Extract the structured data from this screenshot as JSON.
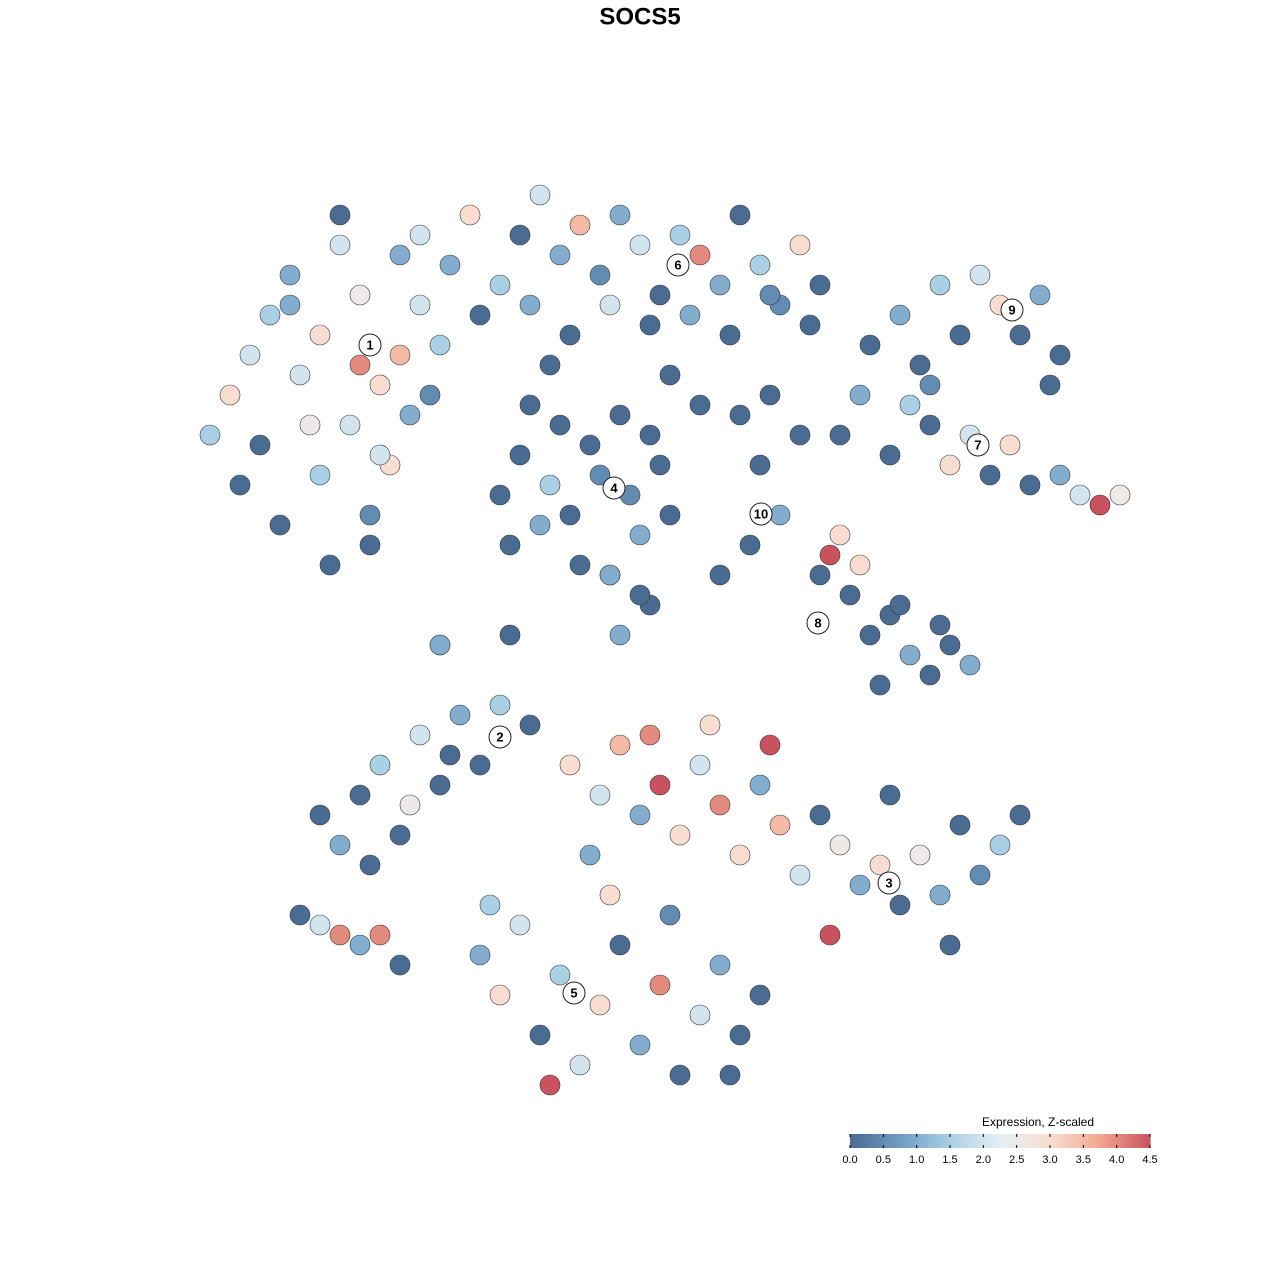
{
  "chart_data": {
    "type": "scatter",
    "title": "SOCS5",
    "xlim": [
      0,
      93
    ],
    "ylim": [
      0,
      91
    ],
    "x": [
      1,
      3,
      5,
      4,
      7,
      9,
      10,
      12,
      14,
      16,
      18,
      20,
      22,
      24,
      8,
      12,
      15,
      17,
      19,
      21,
      6,
      11,
      13,
      17,
      20,
      23,
      14,
      18,
      9,
      16,
      22,
      25,
      27,
      30,
      32,
      34,
      36,
      38,
      40,
      42,
      44,
      46,
      48,
      50,
      52,
      54,
      56,
      58,
      60,
      62,
      28,
      33,
      37,
      41,
      45,
      49,
      53,
      57,
      61,
      35,
      30,
      32,
      34,
      36,
      38,
      40,
      42,
      44,
      46,
      31,
      33,
      35,
      37,
      39,
      41,
      43,
      45,
      47,
      54,
      56,
      58,
      60,
      55,
      57,
      47,
      50,
      52,
      45,
      42,
      24,
      67,
      70,
      72,
      74,
      76,
      78,
      80,
      82,
      84,
      86,
      73,
      85,
      64,
      66,
      69,
      71,
      73,
      75,
      77,
      79,
      81,
      83,
      86,
      88,
      90,
      92,
      63,
      65,
      67,
      69,
      71,
      73,
      75,
      77,
      62,
      66,
      70,
      74,
      68,
      64,
      12,
      14,
      16,
      18,
      20,
      22,
      24,
      26,
      28,
      30,
      17,
      21,
      25,
      33,
      37,
      40,
      42,
      44,
      46,
      48,
      50,
      52,
      54,
      56,
      58,
      60,
      62,
      64,
      66,
      68,
      70,
      72,
      74,
      76,
      78,
      80,
      82,
      39,
      45,
      51,
      57,
      63,
      69,
      75,
      28,
      30,
      32,
      34,
      36,
      38,
      40,
      42,
      44,
      46,
      48,
      50,
      52,
      54,
      56,
      29,
      35,
      41,
      47,
      53,
      10,
      12,
      14,
      16,
      18,
      20,
      24,
      31,
      44,
      41
    ],
    "y": [
      66,
      70,
      74,
      61,
      78,
      82,
      72,
      76,
      85,
      80,
      71,
      84,
      79,
      75,
      57,
      62,
      67,
      58,
      63,
      68,
      65,
      67,
      53,
      55,
      74,
      70,
      88,
      64,
      79,
      73,
      86,
      83,
      88,
      81,
      86,
      90,
      84,
      87,
      82,
      88,
      85,
      80,
      86,
      84,
      81,
      88,
      83,
      79,
      85,
      81,
      78,
      79,
      76,
      79,
      77,
      78,
      76,
      80,
      77,
      73,
      60,
      64,
      57,
      67,
      53,
      62,
      68,
      56,
      63,
      55,
      69,
      61,
      58,
      65,
      52,
      60,
      66,
      58,
      68,
      63,
      58,
      66,
      55,
      70,
      72,
      69,
      52,
      49,
      46,
      45,
      75,
      78,
      73,
      81,
      76,
      82,
      79,
      76,
      80,
      74,
      71,
      71,
      66,
      70,
      64,
      69,
      67,
      63,
      66,
      62,
      65,
      61,
      62,
      60,
      59,
      60,
      54,
      50,
      46,
      48,
      44,
      42,
      45,
      43,
      52,
      53,
      49,
      47,
      41,
      56,
      28,
      25,
      30,
      33,
      26,
      36,
      31,
      38,
      33,
      39,
      23,
      29,
      34,
      37,
      33,
      30,
      35,
      28,
      31,
      26,
      33,
      29,
      24,
      31,
      27,
      22,
      28,
      25,
      21,
      23,
      19,
      24,
      20,
      27,
      22,
      25,
      28,
      24,
      36,
      37,
      35,
      16,
      30,
      15,
      14,
      10,
      17,
      6,
      12,
      3,
      9,
      15,
      5,
      11,
      2,
      8,
      13,
      6,
      10,
      19,
      1,
      20,
      18,
      2,
      18,
      17,
      16,
      15,
      16,
      13,
      45,
      46,
      50,
      52
    ],
    "values": [
      1.5,
      3,
      2,
      0,
      1.5,
      1,
      2,
      3,
      2,
      2.5,
      3,
      1,
      2,
      1.5,
      0,
      1.5,
      2,
      0.5,
      3,
      1,
      0,
      2.5,
      0,
      0,
      3.5,
      0.5,
      0,
      2,
      1,
      4,
      2,
      1,
      3,
      1.5,
      0,
      2,
      1,
      3.5,
      0.5,
      1,
      2,
      0,
      1.5,
      4,
      1,
      0,
      1.5,
      0.5,
      3,
      0,
      0,
      1,
      0,
      2,
      0,
      1,
      0,
      0.5,
      0,
      0,
      0,
      0,
      1,
      0,
      0,
      0.5,
      0,
      1,
      0,
      0,
      0,
      1.5,
      0,
      0,
      0,
      0.5,
      0,
      0,
      0,
      0,
      1,
      0,
      0,
      0,
      0,
      0,
      0,
      0,
      1,
      1,
      0,
      1,
      0,
      1.5,
      0,
      2,
      3,
      0,
      1,
      0,
      0.5,
      0,
      0,
      1,
      0,
      1.5,
      0,
      3,
      2,
      0,
      3,
      0,
      1,
      2,
      4.5,
      2.5,
      4.5,
      0,
      0,
      0,
      1,
      0,
      0,
      1,
      0,
      3,
      0,
      0,
      0,
      3,
      0,
      1,
      0,
      1.5,
      0,
      2,
      0,
      1,
      0,
      1.5,
      0,
      2.5,
      0,
      0,
      3,
      2,
      3.5,
      1,
      4.5,
      3,
      2,
      4,
      3,
      1,
      3.5,
      2,
      0,
      2.5,
      1,
      3,
      0,
      2.5,
      1,
      0,
      0.5,
      1.5,
      0,
      1,
      4,
      3,
      4.5,
      4.5,
      0,
      0,
      1,
      3,
      2,
      0,
      1.5,
      2,
      3,
      0,
      1,
      4,
      0,
      2,
      1,
      0,
      0,
      1.5,
      4.5,
      3,
      0.5,
      0,
      0,
      2,
      4,
      1,
      4,
      0,
      1,
      0,
      0,
      1
    ],
    "annotations": [
      {
        "text": "1",
        "x": 17.0,
        "y": 75.0
      },
      {
        "text": "2",
        "x": 30.0,
        "y": 35.8
      },
      {
        "text": "3",
        "x": 68.9,
        "y": 21.2
      },
      {
        "text": "4",
        "x": 41.4,
        "y": 60.7
      },
      {
        "text": "5",
        "x": 37.4,
        "y": 10.2
      },
      {
        "text": "6",
        "x": 47.8,
        "y": 83.0
      },
      {
        "text": "7",
        "x": 77.8,
        "y": 65.0
      },
      {
        "text": "8",
        "x": 61.8,
        "y": 47.2
      },
      {
        "text": "9",
        "x": 81.2,
        "y": 78.5
      },
      {
        "text": "10",
        "x": 56.1,
        "y": 58.1
      }
    ],
    "colorbar": {
      "title": "Expression, Z-scaled",
      "clim": [
        0,
        4.5
      ],
      "ticks": [
        {
          "value": 0,
          "label": "0.0"
        },
        {
          "value": 0.5,
          "label": "0.5"
        },
        {
          "value": 1,
          "label": "1.0"
        },
        {
          "value": 1.5,
          "label": "1.5"
        },
        {
          "value": 2,
          "label": "2.0"
        },
        {
          "value": 2.5,
          "label": "2.5"
        },
        {
          "value": 3,
          "label": "3.0"
        },
        {
          "value": 3.5,
          "label": "3.5"
        },
        {
          "value": 4,
          "label": "4.0"
        },
        {
          "value": 4.5,
          "label": "4.5"
        }
      ],
      "colors": [
        "#4a6b92",
        "#6f9cc4",
        "#a9d0e4",
        "#e6eff4",
        "#f9ddd0",
        "#f1a88f",
        "#c8525e"
      ]
    }
  }
}
